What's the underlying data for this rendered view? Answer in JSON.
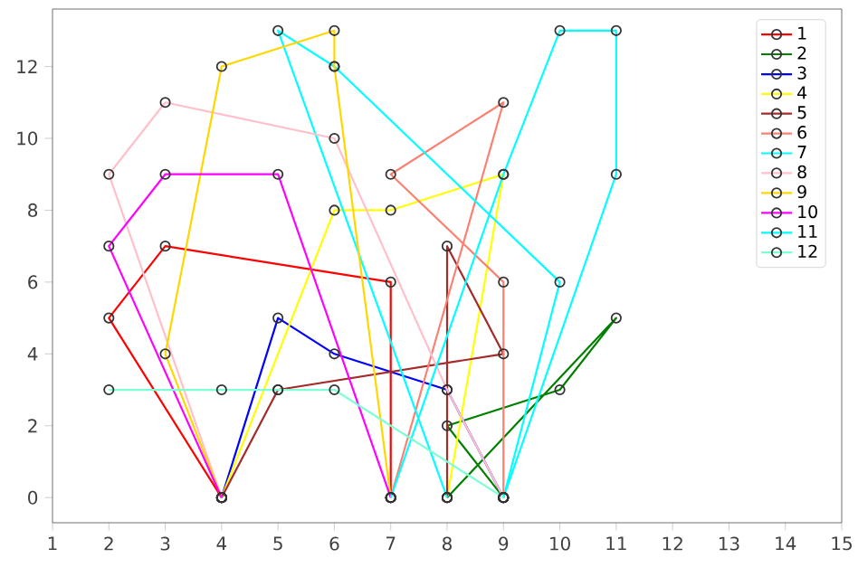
{
  "chart_data": {
    "type": "line",
    "marker": "circle",
    "legend": "top right",
    "grid": false,
    "xlim": [
      1,
      15
    ],
    "ylim": [
      -0.7,
      13.6
    ],
    "xticks": [
      1,
      2,
      3,
      4,
      5,
      6,
      7,
      8,
      9,
      10,
      11,
      12,
      13,
      14,
      15
    ],
    "yticks": [
      0,
      2,
      4,
      6,
      8,
      10,
      12
    ],
    "series": [
      {
        "name": "1",
        "color": "#ff0000",
        "x": [
          4,
          2,
          3,
          7,
          7
        ],
        "values": [
          0,
          5,
          7,
          6,
          0
        ]
      },
      {
        "name": "2",
        "color": "#008000",
        "x": [
          9,
          8,
          10,
          11,
          8
        ],
        "values": [
          0,
          2,
          3,
          5,
          0
        ]
      },
      {
        "name": "3",
        "color": "#0000ff",
        "x": [
          4,
          5,
          6,
          8,
          9
        ],
        "values": [
          0,
          5,
          4,
          3,
          0
        ]
      },
      {
        "name": "4",
        "color": "#ffff00",
        "x": [
          4,
          6,
          7,
          9,
          8
        ],
        "values": [
          0,
          8,
          8,
          9,
          0
        ]
      },
      {
        "name": "5",
        "color": "#a52a2a",
        "x": [
          4,
          5,
          9,
          8,
          8
        ],
        "values": [
          0,
          3,
          4,
          7,
          0
        ]
      },
      {
        "name": "6",
        "color": "#fa8072",
        "x": [
          7,
          9,
          7,
          9,
          9
        ],
        "values": [
          0,
          11,
          9,
          6,
          0
        ]
      },
      {
        "name": "7",
        "color": "#00ffff",
        "x": [
          8,
          5,
          6,
          10,
          9
        ],
        "values": [
          0,
          13,
          12,
          6,
          0
        ]
      },
      {
        "name": "8",
        "color": "#ffc0cb",
        "x": [
          4,
          2,
          3,
          6,
          8,
          9
        ],
        "values": [
          0,
          9,
          11,
          10,
          3,
          0
        ]
      },
      {
        "name": "9",
        "color": "#ffd700",
        "x": [
          4,
          3,
          4,
          6,
          6,
          7
        ],
        "values": [
          0,
          4,
          12,
          13,
          12,
          0
        ]
      },
      {
        "name": "10",
        "color": "#ff00ff",
        "x": [
          4,
          2,
          3,
          5,
          7
        ],
        "values": [
          0,
          7,
          9,
          9,
          0
        ]
      },
      {
        "name": "11",
        "color": "#00ffff",
        "x": [
          7,
          9,
          10,
          11,
          11,
          9
        ],
        "values": [
          0,
          9,
          13,
          13,
          9,
          0
        ]
      },
      {
        "name": "12",
        "color": "#7fffd4",
        "x": [
          2,
          4,
          5,
          6,
          9
        ],
        "values": [
          3,
          3,
          3,
          3,
          0
        ]
      }
    ]
  }
}
